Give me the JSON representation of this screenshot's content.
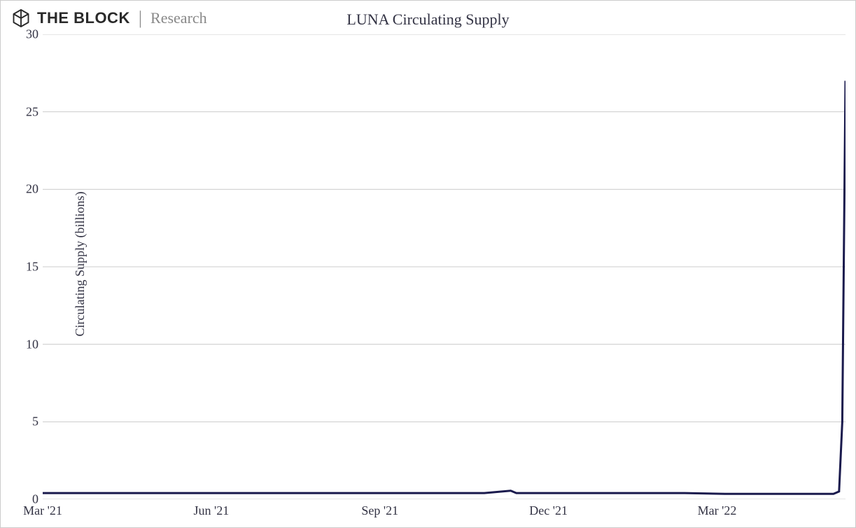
{
  "brand": {
    "name": "THE BLOCK",
    "section": "Research"
  },
  "chart": {
    "type": "line",
    "title": "LUNA Circulating Supply",
    "ylabel": "Circulating Supply (billions)",
    "ylim": [
      0,
      30
    ],
    "yticks": [
      0,
      5,
      10,
      15,
      20,
      25,
      30
    ],
    "xticks": [
      {
        "pos": 0.0,
        "label": "Mar '21"
      },
      {
        "pos": 0.21,
        "label": "Jun '21"
      },
      {
        "pos": 0.42,
        "label": "Sep '21"
      },
      {
        "pos": 0.63,
        "label": "Dec '21"
      },
      {
        "pos": 0.84,
        "label": "Mar '22"
      }
    ],
    "data": [
      {
        "x": 0.0,
        "y": 0.4
      },
      {
        "x": 0.05,
        "y": 0.4
      },
      {
        "x": 0.1,
        "y": 0.4
      },
      {
        "x": 0.15,
        "y": 0.4
      },
      {
        "x": 0.2,
        "y": 0.4
      },
      {
        "x": 0.25,
        "y": 0.4
      },
      {
        "x": 0.3,
        "y": 0.4
      },
      {
        "x": 0.35,
        "y": 0.4
      },
      {
        "x": 0.4,
        "y": 0.4
      },
      {
        "x": 0.45,
        "y": 0.4
      },
      {
        "x": 0.5,
        "y": 0.4
      },
      {
        "x": 0.55,
        "y": 0.4
      },
      {
        "x": 0.583,
        "y": 0.55
      },
      {
        "x": 0.59,
        "y": 0.4
      },
      {
        "x": 0.65,
        "y": 0.4
      },
      {
        "x": 0.7,
        "y": 0.4
      },
      {
        "x": 0.75,
        "y": 0.4
      },
      {
        "x": 0.8,
        "y": 0.4
      },
      {
        "x": 0.85,
        "y": 0.35
      },
      {
        "x": 0.9,
        "y": 0.35
      },
      {
        "x": 0.95,
        "y": 0.35
      },
      {
        "x": 0.985,
        "y": 0.35
      },
      {
        "x": 0.992,
        "y": 0.5
      },
      {
        "x": 0.996,
        "y": 5.0
      },
      {
        "x": 1.0,
        "y": 27.0
      }
    ],
    "line_color": "#1a1a4d",
    "line_width": 3,
    "grid_color": "#cccccc",
    "background_color": "#ffffff",
    "axis_fontsize": 18,
    "title_fontsize": 22,
    "font_family": "Georgia, serif"
  }
}
